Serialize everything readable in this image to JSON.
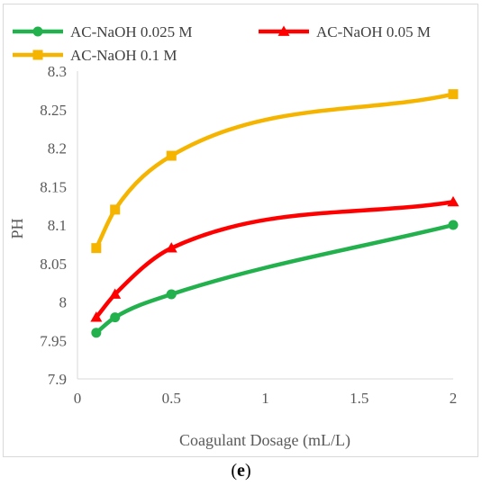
{
  "chart_data": {
    "type": "line",
    "title": "",
    "xlabel": "Coagulant Dosage (mL/L)",
    "ylabel": "PH",
    "xlim": [
      0,
      2
    ],
    "ylim": [
      7.9,
      8.3
    ],
    "x_ticks": [
      "0",
      "0.5",
      "1",
      "1.5",
      "2"
    ],
    "y_ticks": [
      "7.9",
      "7.95",
      "8",
      "8.05",
      "8.1",
      "8.15",
      "8.2",
      "8.25",
      "8.3"
    ],
    "grid": false,
    "legend_position": "top",
    "series": [
      {
        "name": "AC-NaOH 0.025 M",
        "marker": "circle",
        "color": "#22b14c",
        "x": [
          0.1,
          0.2,
          0.5,
          2
        ],
        "y": [
          7.96,
          7.98,
          8.01,
          8.1
        ]
      },
      {
        "name": "AC-NaOH 0.05 M",
        "marker": "triangle",
        "color": "#ff0000",
        "x": [
          0.1,
          0.2,
          0.5,
          2
        ],
        "y": [
          7.98,
          8.01,
          8.07,
          8.13
        ]
      },
      {
        "name": "AC-NaOH 0.1 M",
        "marker": "square",
        "color": "#f5b400",
        "x": [
          0.1,
          0.2,
          0.5,
          2
        ],
        "y": [
          8.07,
          8.12,
          8.19,
          8.27
        ]
      }
    ]
  },
  "panel_label": {
    "open": "(",
    "letter": "e",
    "close": ")"
  }
}
